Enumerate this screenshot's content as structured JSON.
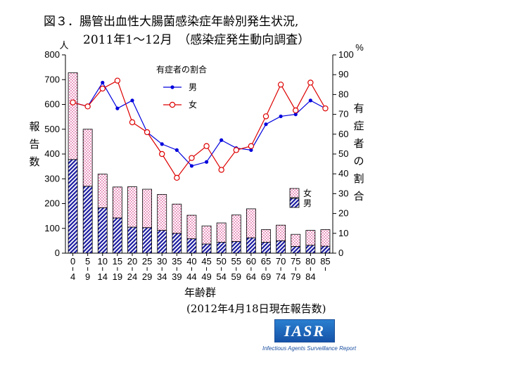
{
  "title_line1": "図３．腸管出血性大腸菌感染症年齢別発生状況,",
  "title_line2": "2011年1～12月　（感染症発生動向調査）",
  "y_left_label": "報告数",
  "y_left_unit": "人",
  "y_right_label": "有症者の割合",
  "y_right_unit": "%",
  "x_label": "年齢群",
  "note": "(2012年4月18日現在報告数)",
  "logo": {
    "text": "IASR",
    "subtitle": "Infectious Agents Surveillance Report"
  },
  "chart_data": {
    "type": "bar+line",
    "categories": [
      [
        "0",
        "4"
      ],
      [
        "5",
        "9"
      ],
      [
        "10",
        "14"
      ],
      [
        "15",
        "19"
      ],
      [
        "20",
        "24"
      ],
      [
        "25",
        "29"
      ],
      [
        "30",
        "34"
      ],
      [
        "35",
        "39"
      ],
      [
        "40",
        "44"
      ],
      [
        "45",
        "49"
      ],
      [
        "50",
        "54"
      ],
      [
        "55",
        "59"
      ],
      [
        "60",
        "64"
      ],
      [
        "65",
        "69"
      ],
      [
        "70",
        "74"
      ],
      [
        "75",
        "79"
      ],
      [
        "80",
        "84"
      ],
      [
        "85",
        ""
      ]
    ],
    "bars": {
      "stacked": true,
      "ylim": [
        0,
        800
      ],
      "yticks": [
        0,
        100,
        200,
        300,
        400,
        500,
        600,
        700,
        800
      ],
      "legend_title": "",
      "series": [
        {
          "name": "男",
          "pattern": "hatch",
          "color": "#1a1aa0",
          "values": [
            378,
            270,
            183,
            142,
            105,
            103,
            92,
            80,
            58,
            37,
            44,
            47,
            62,
            44,
            50,
            27,
            32,
            28
          ]
        },
        {
          "name": "女",
          "pattern": "dots",
          "color": "#cc0066",
          "values": [
            350,
            230,
            136,
            125,
            163,
            155,
            145,
            118,
            95,
            73,
            78,
            107,
            117,
            51,
            63,
            49,
            60,
            67
          ]
        }
      ]
    },
    "lines": {
      "ylim": [
        0,
        100
      ],
      "yticks": [
        0,
        10,
        20,
        30,
        40,
        50,
        60,
        70,
        80,
        90,
        100
      ],
      "legend_title": "有症者の割合",
      "series": [
        {
          "name": "男",
          "color": "#0000dd",
          "marker": "filled",
          "values": [
            76,
            74,
            86,
            73,
            77,
            61,
            55,
            52,
            44,
            46,
            57,
            53,
            52,
            65,
            69,
            70,
            77,
            73
          ]
        },
        {
          "name": "女",
          "color": "#dd0000",
          "marker": "open",
          "values": [
            76,
            74,
            83,
            87,
            66,
            61,
            50,
            38,
            48,
            54,
            42,
            52,
            54,
            69,
            85,
            72,
            86,
            73
          ]
        }
      ]
    }
  }
}
